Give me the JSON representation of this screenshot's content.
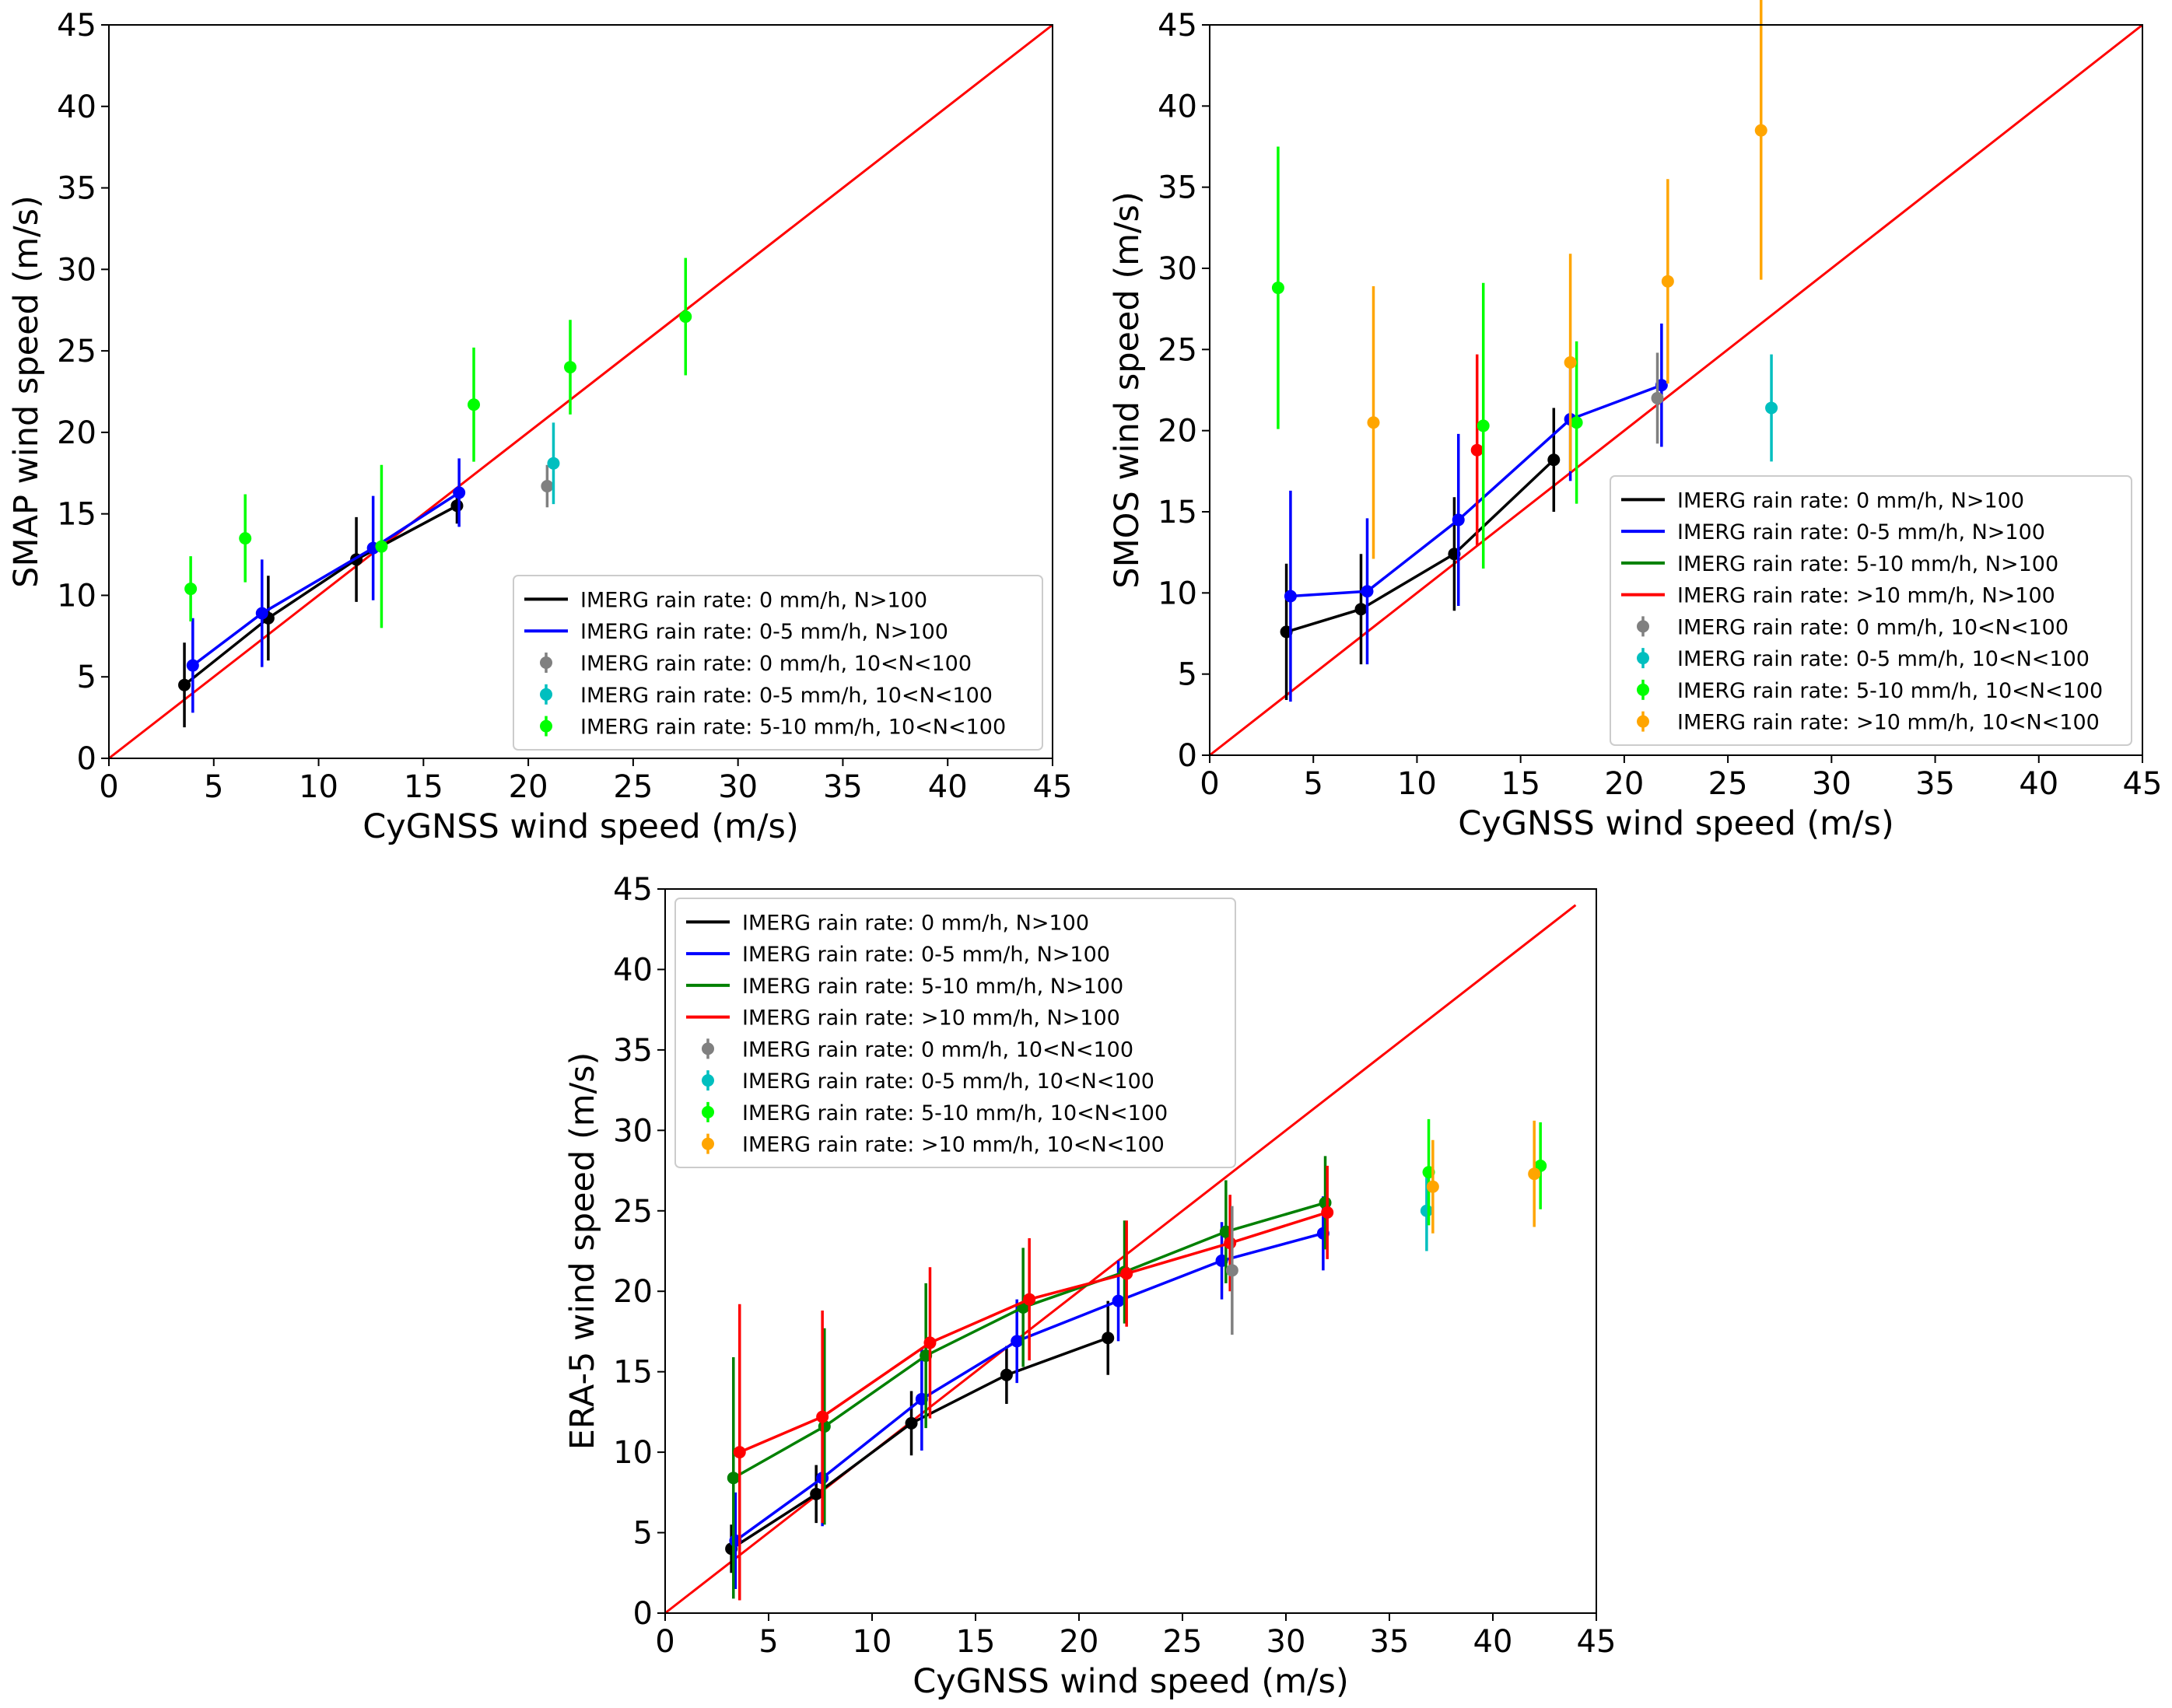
{
  "colors": {
    "black": "#000000",
    "blue": "#0000ff",
    "green": "#008000",
    "red": "#ff0000",
    "gray": "#808080",
    "cyan": "#00bfbf",
    "lime": "#00ff00",
    "orange": "#ffa500"
  },
  "chart_data": [
    {
      "id": "smap",
      "type": "line",
      "title": "",
      "xlabel": "CyGNSS wind speed (m/s)",
      "ylabel": "SMAP wind speed (m/s)",
      "xlim": [
        0,
        45
      ],
      "ylim": [
        0,
        45
      ],
      "xticks": [
        "0",
        "5",
        "10",
        "15",
        "20",
        "25",
        "30",
        "35",
        "40",
        "45"
      ],
      "yticks": [
        "0",
        "5",
        "10",
        "15",
        "20",
        "25",
        "30",
        "35",
        "40",
        "45"
      ],
      "legend_position": "lower-right",
      "reference_line": {
        "name": "1:1 line",
        "color": "red",
        "x": [
          0,
          45
        ],
        "y": [
          0,
          45
        ]
      },
      "series": [
        {
          "name": "IMERG rain rate: 0 mm/h, N>100",
          "kind": "line",
          "color": "black",
          "points": [
            [
              3.6,
              4.5,
              2.6
            ],
            [
              7.6,
              8.6,
              2.6
            ],
            [
              11.8,
              12.2,
              2.6
            ],
            [
              16.6,
              15.5,
              1.1
            ]
          ]
        },
        {
          "name": "IMERG rain rate: 0-5 mm/h, N>100",
          "kind": "line",
          "color": "blue",
          "points": [
            [
              4.0,
              5.7,
              2.9
            ],
            [
              7.3,
              8.9,
              3.3
            ],
            [
              12.6,
              12.9,
              3.2
            ],
            [
              16.7,
              16.3,
              2.1
            ]
          ]
        },
        {
          "name": "IMERG rain rate: 0 mm/h, 10<N<100",
          "kind": "points",
          "color": "gray",
          "points": [
            [
              20.9,
              16.7,
              1.3
            ]
          ]
        },
        {
          "name": "IMERG rain rate: 0-5 mm/h, 10<N<100",
          "kind": "points",
          "color": "cyan",
          "points": [
            [
              21.2,
              18.1,
              2.5
            ]
          ]
        },
        {
          "name": "IMERG rain rate: 5-10 mm/h, 10<N<100",
          "kind": "points",
          "color": "lime",
          "points": [
            [
              3.9,
              10.4,
              2.0
            ],
            [
              6.5,
              13.5,
              2.7
            ],
            [
              13.0,
              13.0,
              5.0
            ],
            [
              17.4,
              21.7,
              3.5
            ],
            [
              22.0,
              24.0,
              2.9
            ],
            [
              27.5,
              27.1,
              3.6
            ]
          ]
        }
      ]
    },
    {
      "id": "smos",
      "type": "line",
      "title": "",
      "xlabel": "CyGNSS wind speed (m/s)",
      "ylabel": "SMOS wind speed (m/s)",
      "xlim": [
        0,
        45
      ],
      "ylim": [
        0,
        45
      ],
      "xticks": [
        "0",
        "5",
        "10",
        "15",
        "20",
        "25",
        "30",
        "35",
        "40",
        "45"
      ],
      "yticks": [
        "0",
        "5",
        "10",
        "15",
        "20",
        "25",
        "30",
        "35",
        "40",
        "45"
      ],
      "legend_position": "lower-right",
      "reference_line": {
        "name": "1:1 line",
        "color": "red",
        "x": [
          0,
          45
        ],
        "y": [
          0,
          45
        ]
      },
      "series": [
        {
          "name": "IMERG rain rate: 0 mm/h, N>100",
          "kind": "line",
          "color": "black",
          "points": [
            [
              3.7,
              7.6,
              4.2
            ],
            [
              7.3,
              9.0,
              3.4
            ],
            [
              11.8,
              12.4,
              3.5
            ],
            [
              16.6,
              18.2,
              3.2
            ]
          ]
        },
        {
          "name": "IMERG rain rate: 0-5 mm/h, N>100",
          "kind": "line",
          "color": "blue",
          "points": [
            [
              3.9,
              9.8,
              6.5
            ],
            [
              7.6,
              10.1,
              4.5
            ],
            [
              12.0,
              14.5,
              5.3
            ],
            [
              17.4,
              20.7,
              3.8
            ],
            [
              21.8,
              22.8,
              3.8
            ]
          ]
        },
        {
          "name": "IMERG rain rate: 5-10 mm/h, N>100",
          "kind": "line",
          "color": "green",
          "points": []
        },
        {
          "name": "IMERG rain rate: >10 mm/h, N>100",
          "kind": "line",
          "color": "red",
          "points": [
            [
              12.9,
              18.8,
              5.9
            ]
          ]
        },
        {
          "name": "IMERG rain rate: 0 mm/h, 10<N<100",
          "kind": "points",
          "color": "gray",
          "points": [
            [
              21.6,
              22.0,
              2.8
            ]
          ]
        },
        {
          "name": "IMERG rain rate: 0-5 mm/h, 10<N<100",
          "kind": "points",
          "color": "cyan",
          "points": [
            [
              27.1,
              21.4,
              3.3
            ]
          ]
        },
        {
          "name": "IMERG rain rate: 5-10 mm/h, 10<N<100",
          "kind": "points",
          "color": "lime",
          "points": [
            [
              3.3,
              28.8,
              8.7
            ],
            [
              13.2,
              20.3,
              8.8
            ],
            [
              17.7,
              20.5,
              5.0
            ]
          ]
        },
        {
          "name": "IMERG rain rate: >10 mm/h, 10<N<100",
          "kind": "points",
          "color": "orange",
          "points": [
            [
              7.9,
              20.5,
              8.4
            ],
            [
              17.4,
              24.2,
              6.7
            ],
            [
              22.1,
              29.2,
              6.3
            ],
            [
              26.6,
              38.5,
              9.2
            ]
          ]
        }
      ]
    },
    {
      "id": "era5",
      "type": "line",
      "title": "",
      "xlabel": "CyGNSS wind speed (m/s)",
      "ylabel": "ERA-5 wind speed (m/s)",
      "xlim": [
        0,
        45
      ],
      "ylim": [
        0,
        45
      ],
      "xticks": [
        "0",
        "5",
        "10",
        "15",
        "20",
        "25",
        "30",
        "35",
        "40",
        "45"
      ],
      "yticks": [
        "0",
        "5",
        "10",
        "15",
        "20",
        "25",
        "30",
        "35",
        "40",
        "45"
      ],
      "legend_position": "upper-left",
      "reference_line": {
        "name": "1:1 line",
        "color": "red",
        "x": [
          0,
          44
        ],
        "y": [
          0,
          44
        ]
      },
      "series": [
        {
          "name": "IMERG rain rate: 0 mm/h, N>100",
          "kind": "line",
          "color": "black",
          "points": [
            [
              3.2,
              4.0,
              1.5
            ],
            [
              7.3,
              7.4,
              1.8
            ],
            [
              11.9,
              11.8,
              2.0
            ],
            [
              16.5,
              14.8,
              1.8
            ],
            [
              21.4,
              17.1,
              2.3
            ]
          ]
        },
        {
          "name": "IMERG rain rate: 0-5 mm/h, N>100",
          "kind": "line",
          "color": "blue",
          "points": [
            [
              3.4,
              4.5,
              3.0
            ],
            [
              7.6,
              8.4,
              3.0
            ],
            [
              12.4,
              13.3,
              3.2
            ],
            [
              17.0,
              16.9,
              2.6
            ],
            [
              21.9,
              19.4,
              2.5
            ],
            [
              26.9,
              21.9,
              2.4
            ],
            [
              31.8,
              23.6,
              2.3
            ]
          ]
        },
        {
          "name": "IMERG rain rate: 5-10 mm/h, N>100",
          "kind": "line",
          "color": "green",
          "points": [
            [
              3.3,
              8.4,
              7.5
            ],
            [
              7.7,
              11.6,
              6.1
            ],
            [
              12.6,
              16.0,
              4.5
            ],
            [
              17.3,
              19.0,
              3.7
            ],
            [
              22.2,
              21.2,
              3.2
            ],
            [
              27.1,
              23.7,
              3.2
            ],
            [
              31.9,
              25.5,
              2.9
            ]
          ]
        },
        {
          "name": "IMERG rain rate: >10 mm/h, N>100",
          "kind": "line",
          "color": "red",
          "points": [
            [
              3.6,
              10.0,
              9.2
            ],
            [
              7.6,
              12.2,
              6.6
            ],
            [
              12.8,
              16.8,
              4.7
            ],
            [
              17.6,
              19.5,
              3.8
            ],
            [
              22.3,
              21.1,
              3.3
            ],
            [
              27.3,
              23.0,
              3.0
            ],
            [
              32.0,
              24.9,
              2.9
            ]
          ]
        },
        {
          "name": "IMERG rain rate: 0 mm/h, 10<N<100",
          "kind": "points",
          "color": "gray",
          "points": [
            [
              27.4,
              21.3,
              4.0
            ]
          ]
        },
        {
          "name": "IMERG rain rate: 0-5 mm/h, 10<N<100",
          "kind": "points",
          "color": "cyan",
          "points": [
            [
              36.8,
              25.0,
              2.5
            ]
          ]
        },
        {
          "name": "IMERG rain rate: 5-10 mm/h, 10<N<100",
          "kind": "points",
          "color": "lime",
          "points": [
            [
              36.9,
              27.4,
              3.3
            ],
            [
              42.3,
              27.8,
              2.7
            ]
          ]
        },
        {
          "name": "IMERG rain rate: >10 mm/h, 10<N<100",
          "kind": "points",
          "color": "orange",
          "points": [
            [
              37.1,
              26.5,
              2.9
            ],
            [
              42.0,
              27.3,
              3.3
            ]
          ]
        }
      ]
    }
  ]
}
